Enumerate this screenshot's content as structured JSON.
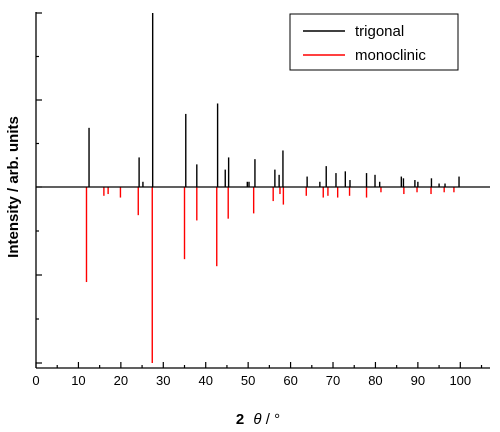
{
  "chart_data": {
    "type": "bar",
    "xlabel_bold": "2",
    "xlabel_theta": "θ",
    "xlabel_unit": " / °",
    "ylabel": "Intensity / arb. units",
    "xlim": [
      0,
      107
    ],
    "ylim": [
      -100,
      100
    ],
    "x_ticks": [
      0,
      10,
      20,
      30,
      40,
      50,
      60,
      70,
      80,
      90,
      100
    ],
    "grid": false,
    "legend_position": "top-right",
    "series": [
      {
        "name": "trigonal",
        "color": "#000000",
        "direction": "up",
        "x": [
          12.5,
          24.3,
          25.2,
          27.5,
          35.3,
          37.9,
          42.8,
          44.6,
          45.4,
          49.8,
          50.2,
          51.6,
          56.3,
          57.3,
          58.2,
          63.9,
          66.9,
          68.4,
          70.7,
          72.9,
          74.0,
          77.9,
          79.9,
          81.0,
          86.1,
          86.6,
          89.3,
          90.0,
          93.2,
          95.0,
          96.4,
          99.7
        ],
        "values": [
          34,
          17,
          3,
          100,
          42,
          13,
          48,
          10,
          17,
          3,
          3,
          16,
          10,
          7,
          21,
          6,
          3,
          12,
          8,
          9,
          4,
          8,
          7,
          3,
          6,
          5,
          4,
          3,
          5,
          2,
          2,
          6
        ]
      },
      {
        "name": "monoclinic",
        "color": "#ff0000",
        "direction": "down",
        "x": [
          11.9,
          16.0,
          17.0,
          19.9,
          24.1,
          27.4,
          35.0,
          37.9,
          42.6,
          45.3,
          51.3,
          55.9,
          57.5,
          58.3,
          63.7,
          67.7,
          68.8,
          71.1,
          73.9,
          77.9,
          81.3,
          86.7,
          89.8,
          93.1,
          96.2,
          98.5
        ],
        "values": [
          54,
          5,
          4,
          6,
          16,
          100,
          41,
          19,
          45,
          18,
          15,
          8,
          4,
          10,
          5,
          6,
          5,
          6,
          5,
          6,
          3,
          4,
          3,
          4,
          3,
          3
        ]
      }
    ]
  }
}
